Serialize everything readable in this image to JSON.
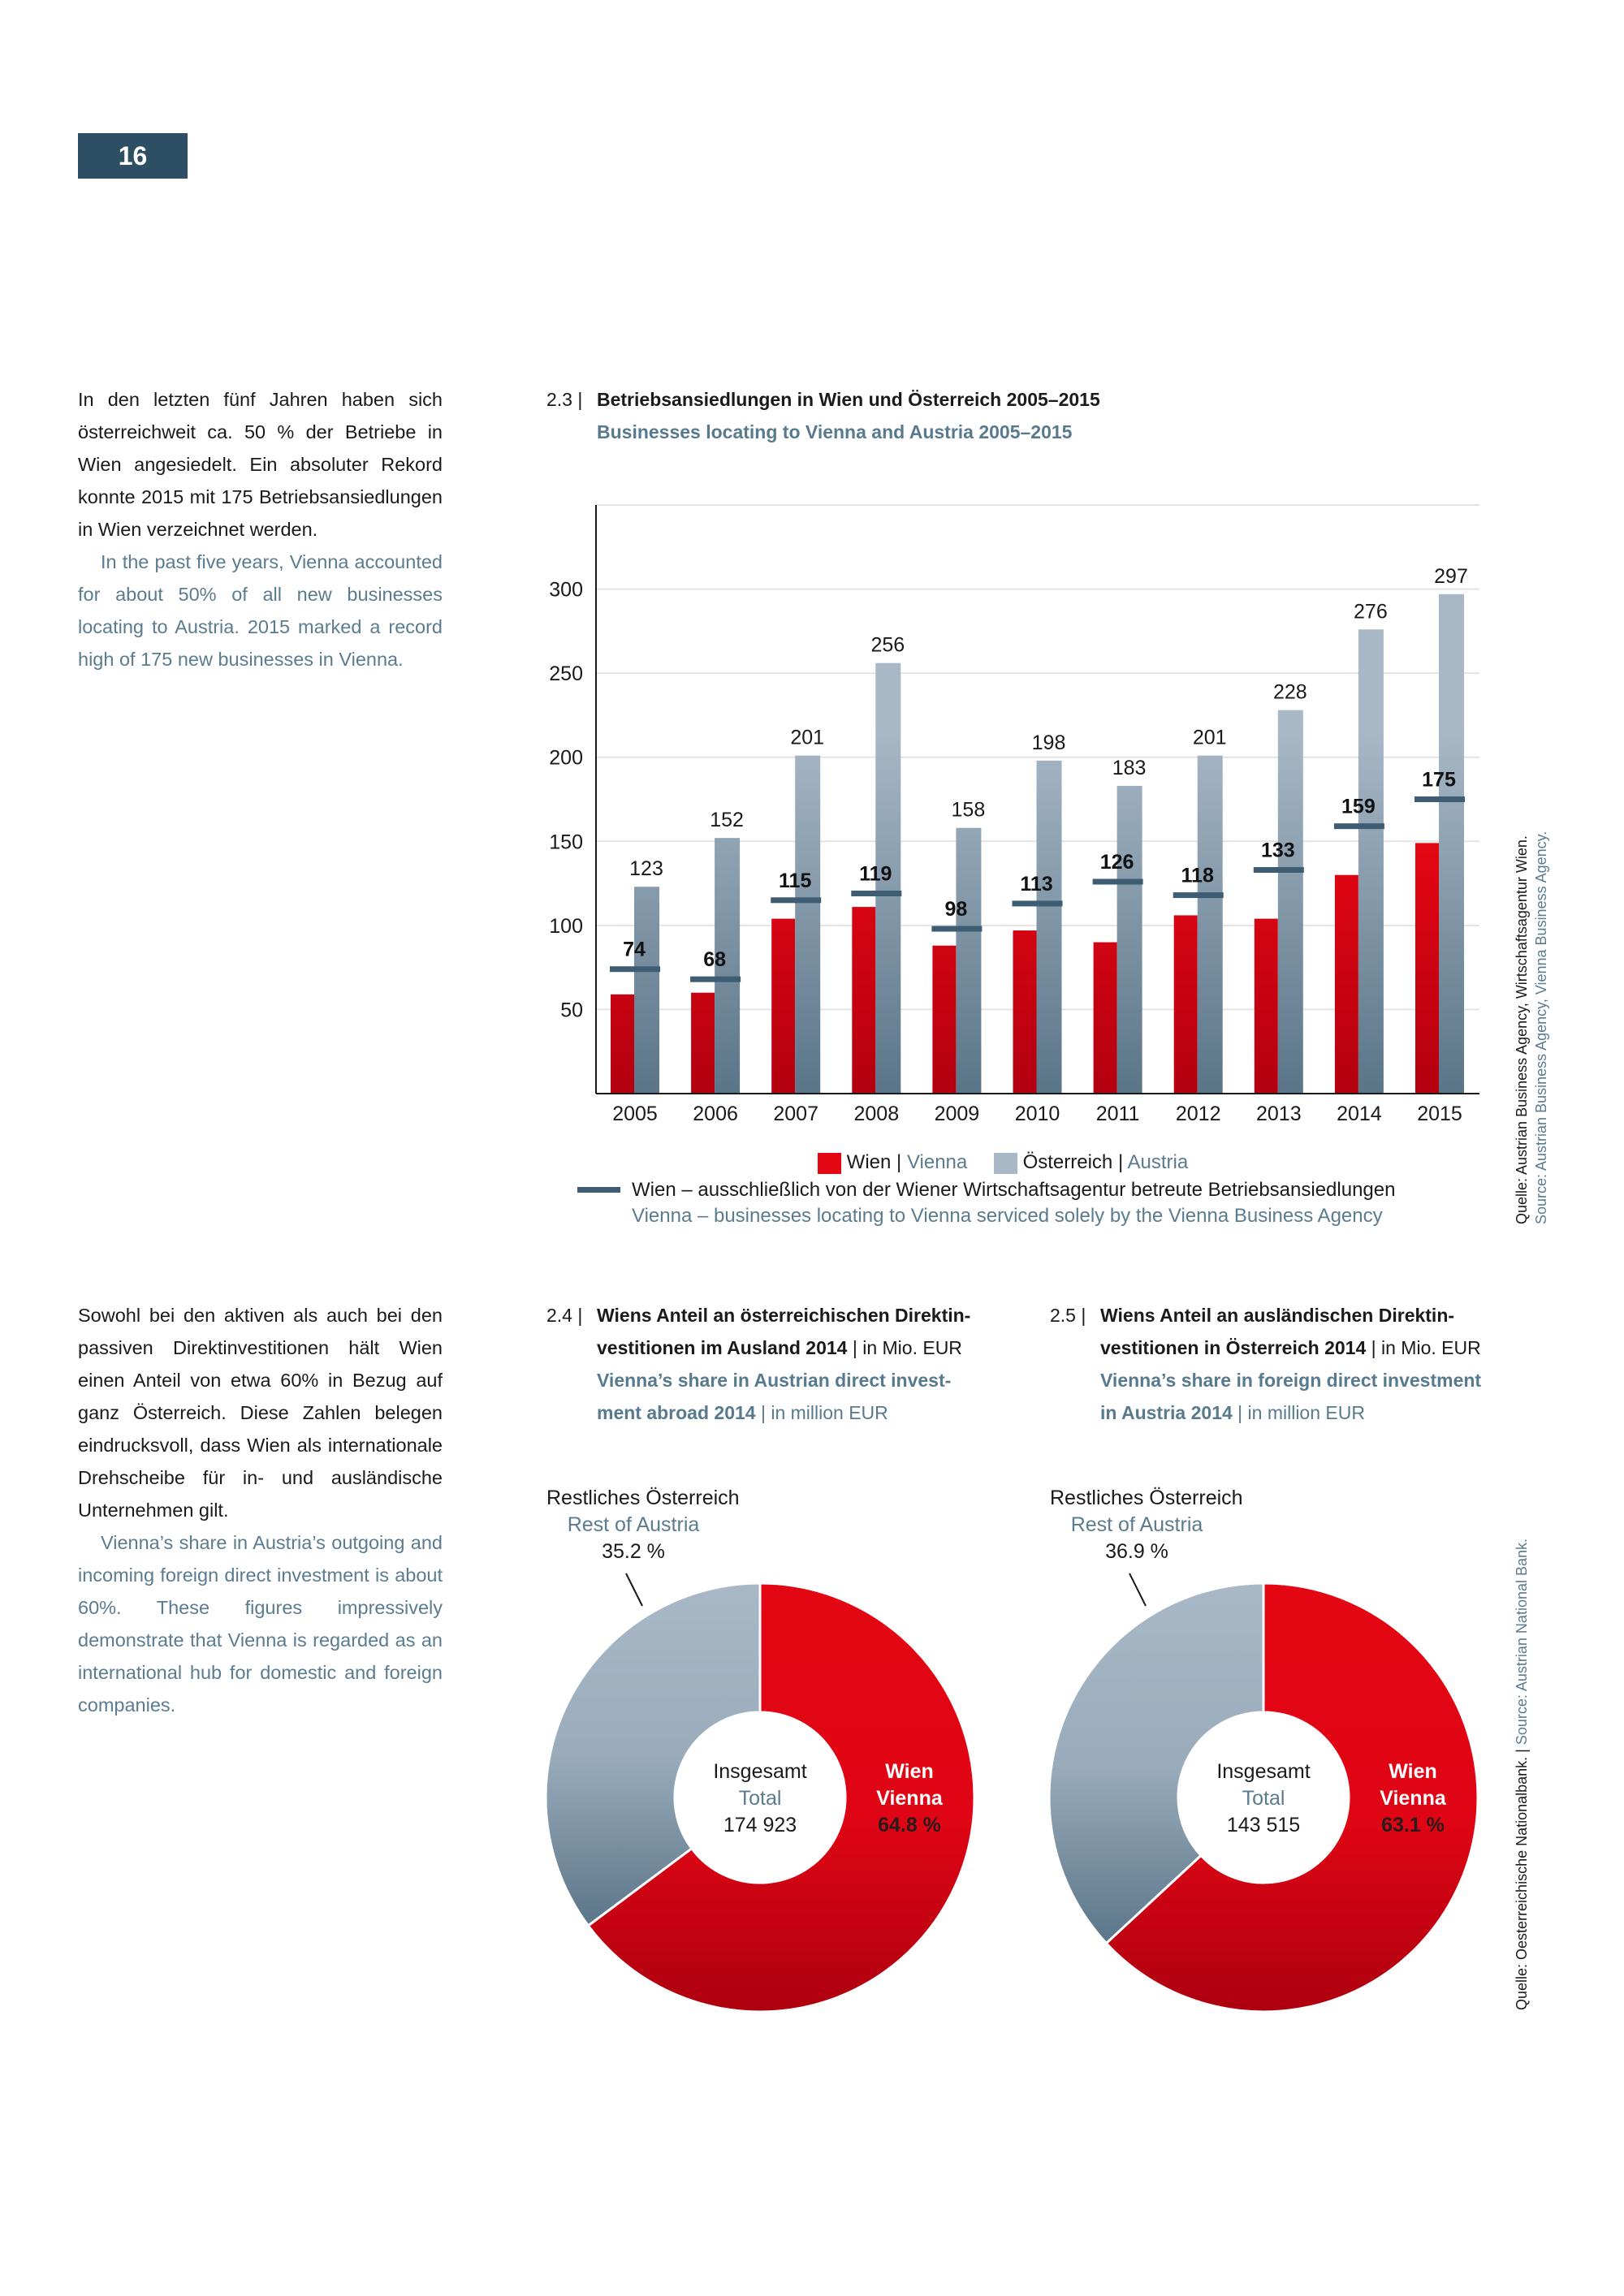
{
  "page_number": "16",
  "intro": {
    "de": "In den letzten fünf Jahren haben sich österreichweit ca. 50 % der Betriebe in Wien angesiedelt. Ein absoluter Rekord konnte 2015 mit 175 Betriebsansiedlungen in Wien verzeichnet werden.",
    "en": "In the past five years, Vienna accounted for about 50% of all new businesses locating to Austria. 2015 marked a record high of 175 new businesses in Vienna."
  },
  "fdi_text": {
    "de": "Sowohl bei den aktiven als auch bei den passiven Direktinvestitionen hält Wien einen Anteil von etwa 60% in Bezug auf ganz Österreich. Diese Zahlen belegen eindrucksvoll, dass Wien als internationale Drehscheibe für in- und ausländische Unternehmen gilt.",
    "en": "Vienna’s share in Austria’s outgoing and incoming foreign direct investment is about 60%. These figures impressively demonstrate that Vienna is regarded as an international hub for domestic and foreign companies."
  },
  "colors": {
    "wien": "#e30613",
    "austria": "#a8b8c7",
    "marker": "#3e5c72",
    "accent": "#2d4e63",
    "teal_text": "#5b7b8f"
  },
  "chart_data": [
    {
      "type": "bar",
      "number": "2.3 |",
      "title": "Betriebsansiedlungen in Wien und Österreich 2005–2015",
      "subtitle": "Businesses locating to Vienna and Austria 2005–2015",
      "categories": [
        "2005",
        "2006",
        "2007",
        "2008",
        "2009",
        "2010",
        "2011",
        "2012",
        "2013",
        "2014",
        "2015"
      ],
      "series": [
        {
          "name": "Wien | Vienna",
          "name_de": "Wien",
          "name_en": "Vienna",
          "values": [
            59,
            60,
            104,
            111,
            88,
            97,
            90,
            106,
            104,
            130,
            149
          ]
        },
        {
          "name": "Österreich | Austria",
          "name_de": "Österreich",
          "name_en": "Austria",
          "values": [
            123,
            152,
            201,
            256,
            158,
            198,
            183,
            201,
            228,
            276,
            297
          ]
        },
        {
          "name": "Wien – ausschließlich von der Wiener Wirtschaftsagentur betreute Betriebsansiedlungen",
          "name_en": "Vienna – businesses locating to Vienna serviced solely by the Vienna Business Agency",
          "style": "marker",
          "values": [
            74,
            68,
            115,
            119,
            98,
            113,
            126,
            118,
            133,
            159,
            175
          ]
        }
      ],
      "yticks": [
        "50",
        "100",
        "150",
        "200",
        "250",
        "300"
      ],
      "ylim": [
        0,
        350
      ],
      "grid": true,
      "legend": "bottom",
      "source_de": "Quelle: Austrian Business Agency, Wirtschaftsagentur Wien.",
      "source_en": "Source: Austrian Business Agency, Vienna Business Agency."
    },
    {
      "type": "pie",
      "number": "2.4 |",
      "title": "Wiens Anteil an österreichischen Direktinvestitionen im Ausland 2014",
      "title_l1": "Wiens Anteil an österreichischen Direktin-",
      "title_l2": "vestitionen im Ausland 2014",
      "unit": "| in Mio. EUR",
      "subtitle_l1": "Vienna’s share in Austrian direct invest-",
      "subtitle_l2": "ment abroad 2014",
      "unit_en": "| in million EUR",
      "total_de": "Insgesamt",
      "total_en": "Total",
      "total": "174 923",
      "slices": [
        {
          "label_de": "Wien",
          "label_en": "Vienna",
          "value": 64.8,
          "value_label": "64.8 %"
        },
        {
          "label_de": "Restliches Österreich",
          "label_en": "Rest of Austria",
          "value": 35.2,
          "value_label": "35.2 %"
        }
      ]
    },
    {
      "type": "pie",
      "number": "2.5 |",
      "title": "Wiens Anteil an ausländischen Direktinvestitionen in Österreich 2014",
      "title_l1": "Wiens Anteil an ausländischen Direktin-",
      "title_l2": "vestitionen in Österreich 2014",
      "unit": "| in Mio. EUR",
      "subtitle_l1": "Vienna’s share in foreign direct investment",
      "subtitle_l2": "in Austria 2014",
      "unit_en": "| in million EUR",
      "total_de": "Insgesamt",
      "total_en": "Total",
      "total": "143 515",
      "slices": [
        {
          "label_de": "Wien",
          "label_en": "Vienna",
          "value": 63.1,
          "value_label": "63.1 %"
        },
        {
          "label_de": "Restliches Österreich",
          "label_en": "Rest of Austria",
          "value": 36.9,
          "value_label": "36.9 %"
        }
      ]
    }
  ],
  "fdi_source": "Quelle: Oesterreichische Nationalbank. | Source: Austrian National Bank.",
  "fdi_source_de": "Quelle: Oesterreichische Nationalbank. |",
  "fdi_source_en": "Source: Austrian National Bank."
}
